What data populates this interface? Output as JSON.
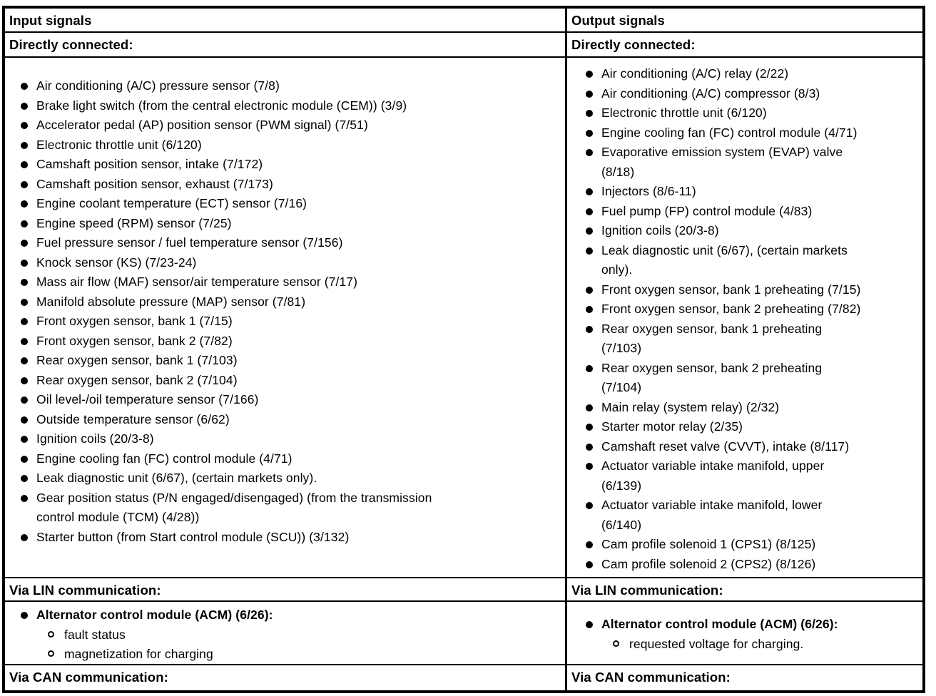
{
  "input": {
    "header": "Input signals",
    "directly_connected_label": "Directly connected:",
    "directly_connected_items": [
      "Air conditioning (A/C) pressure sensor (7/8)",
      "Brake light switch (from the central electronic module (CEM)) (3/9)",
      "Accelerator pedal (AP) position sensor (PWM signal) (7/51)",
      "Electronic throttle unit (6/120)",
      "Camshaft position sensor, intake (7/172)",
      "Camshaft position sensor, exhaust (7/173)",
      "Engine coolant temperature (ECT) sensor (7/16)",
      "Engine speed (RPM) sensor (7/25)",
      "Fuel pressure sensor / fuel temperature sensor (7/156)",
      "Knock sensor (KS) (7/23-24)",
      "Mass air flow (MAF) sensor/air temperature sensor (7/17)",
      "Manifold absolute pressure (MAP) sensor (7/81)",
      "Front oxygen sensor, bank 1 (7/15)",
      "Front oxygen sensor, bank 2 (7/82)",
      "Rear oxygen sensor, bank 1 (7/103)",
      "Rear oxygen sensor, bank 2 (7/104)",
      "Oil level-/oil temperature sensor (7/166)",
      "Outside temperature sensor (6/62)",
      "Ignition coils (20/3-8)",
      "Engine cooling fan (FC) control module (4/71)",
      "Leak diagnostic unit (6/67), (certain markets only).",
      "Gear position status (P/N engaged/disengaged) (from the transmission\ncontrol module (TCM) (4/28))",
      "Starter button (from Start control module (SCU)) (3/132)"
    ],
    "via_lin_label": "Via LIN communication:",
    "lin_item": "Alternator control module (ACM) (6/26):",
    "lin_sub_items": [
      "fault status",
      "magnetization for charging"
    ],
    "via_can_label": "Via CAN communication:"
  },
  "output": {
    "header": "Output signals",
    "directly_connected_label": "Directly connected:",
    "directly_connected_items": [
      "Air conditioning (A/C) relay (2/22)",
      "Air conditioning (A/C) compressor (8/3)",
      "Electronic throttle unit (6/120)",
      "Engine cooling fan (FC) control module (4/71)",
      "Evaporative emission system (EVAP) valve\n(8/18)",
      "Injectors (8/6-11)",
      "Fuel pump (FP) control module (4/83)",
      "Ignition coils (20/3-8)",
      "Leak diagnostic unit (6/67), (certain markets\nonly).",
      "Front oxygen sensor, bank 1 preheating (7/15)",
      "Front oxygen sensor, bank 2 preheating (7/82)",
      "Rear oxygen sensor, bank 1 preheating\n(7/103)",
      "Rear oxygen sensor, bank 2 preheating\n(7/104)",
      "Main relay (system relay) (2/32)",
      "Starter motor relay (2/35)",
      "Camshaft reset valve (CVVT), intake (8/117)",
      "Actuator variable intake manifold, upper\n(6/139)",
      "Actuator variable intake manifold, lower\n(6/140)",
      "Cam profile solenoid 1 (CPS1) (8/125)",
      "Cam profile solenoid 2 (CPS2) (8/126)"
    ],
    "via_lin_label": "Via LIN communication:",
    "lin_item": "Alternator control module (ACM) (6/26):",
    "lin_sub_items": [
      "requested voltage for charging."
    ],
    "via_can_label": "Via CAN communication:"
  }
}
